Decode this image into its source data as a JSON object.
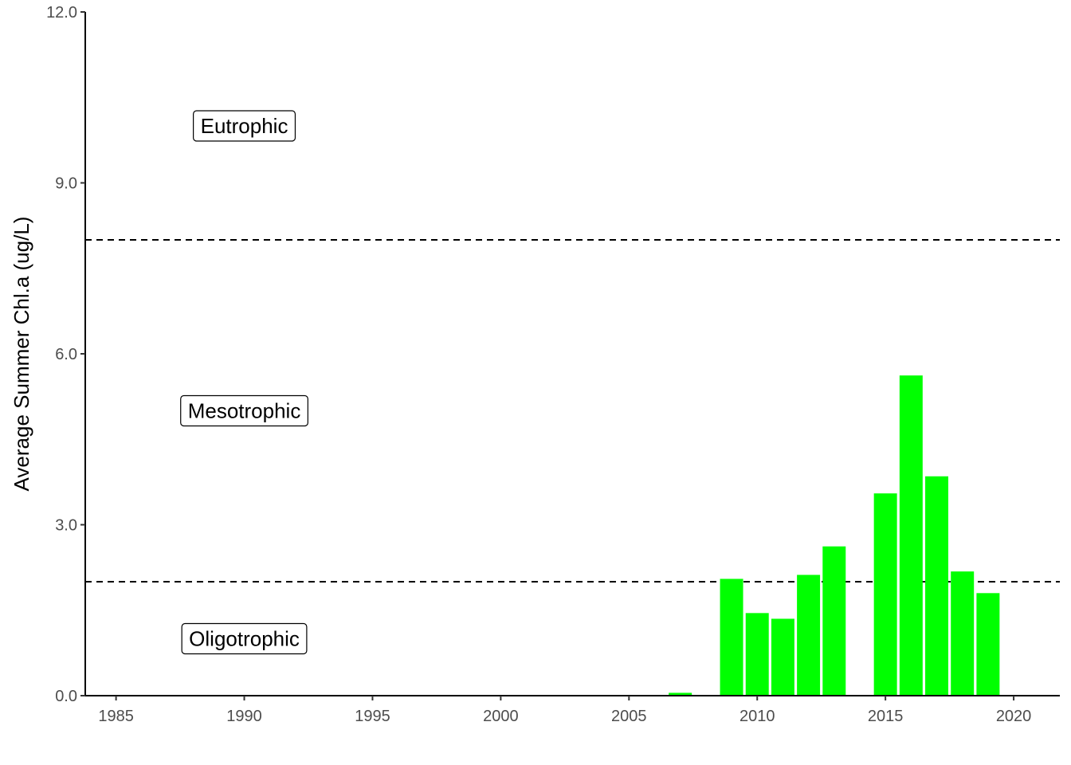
{
  "chart_data": {
    "type": "bar",
    "title": "",
    "xlabel": "",
    "ylabel": "Average Summer Chl.a (ug/L)",
    "xlim": [
      1983.8,
      2021.8
    ],
    "ylim": [
      0,
      12
    ],
    "x_ticks": [
      1985,
      1990,
      1995,
      2000,
      2005,
      2010,
      2015,
      2020
    ],
    "y_ticks": [
      0,
      3,
      6,
      9,
      12
    ],
    "y_tick_labels": [
      "0.0",
      "3.0",
      "6.0",
      "9.0",
      "12.0"
    ],
    "grid": false,
    "bar_color": "#00ff00",
    "series": [
      {
        "x": [
          2007,
          2009,
          2010,
          2011,
          2012,
          2013,
          2015,
          2016,
          2017,
          2018,
          2019
        ],
        "values": [
          0.05,
          2.05,
          1.45,
          1.35,
          2.12,
          2.62,
          3.55,
          5.62,
          3.85,
          2.18,
          1.8
        ]
      }
    ],
    "reference_lines": [
      {
        "y": 2,
        "style": "dashed",
        "color": "#000000"
      },
      {
        "y": 8,
        "style": "dashed",
        "color": "#000000"
      }
    ],
    "annotations": [
      {
        "text": "Eutrophic",
        "x": 1990,
        "y": 10
      },
      {
        "text": "Mesotrophic",
        "x": 1990,
        "y": 5
      },
      {
        "text": "Oligotrophic",
        "x": 1990,
        "y": 1
      }
    ]
  }
}
